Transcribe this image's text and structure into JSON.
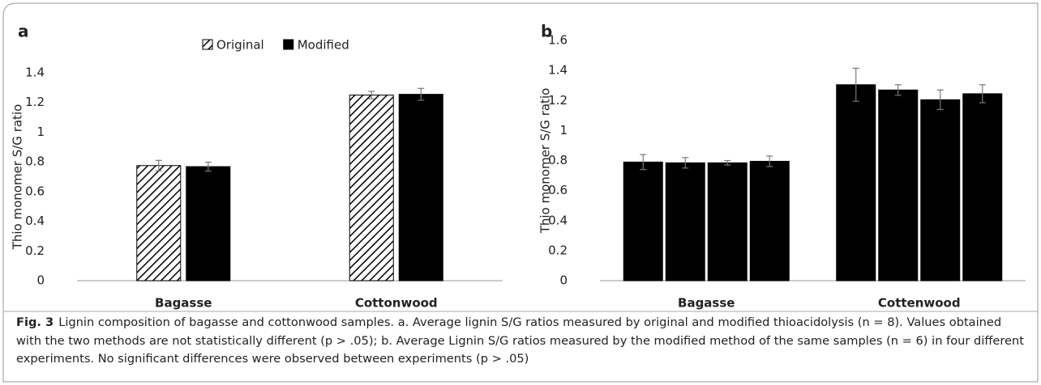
{
  "chart_data": [
    {
      "type": "bar",
      "panel": "a",
      "ylabel": "Thio monomer S/G ratio",
      "categories": [
        "Bagasse",
        "Cottonwood"
      ],
      "series": [
        {
          "name": "Original",
          "color": "#000000",
          "hatch": true,
          "values": [
            0.775,
            1.25
          ],
          "errors": [
            0.035,
            0.025
          ]
        },
        {
          "name": "Modified",
          "color": "#000000",
          "hatch": false,
          "values": [
            0.768,
            1.255
          ],
          "errors": [
            0.03,
            0.04
          ]
        }
      ],
      "ylim": [
        0,
        1.4
      ],
      "yticks": [
        0,
        0.2,
        0.4,
        0.6,
        0.8,
        1,
        1.2,
        1.4
      ],
      "grid": false,
      "legend": "top"
    },
    {
      "type": "bar",
      "panel": "b",
      "ylabel": "Thio monomer S/G ratio",
      "categories": [
        "Bagasse",
        "Cottenwood"
      ],
      "series": [
        {
          "color": "#000000",
          "values": [
            0.79,
            1.305
          ],
          "errors": [
            0.05,
            0.11
          ]
        },
        {
          "color": "#000000",
          "values": [
            0.785,
            1.27
          ],
          "errors": [
            0.035,
            0.035
          ]
        },
        {
          "color": "#000000",
          "values": [
            0.785,
            1.205
          ],
          "errors": [
            0.015,
            0.065
          ]
        },
        {
          "color": "#000000",
          "values": [
            0.795,
            1.245
          ],
          "errors": [
            0.035,
            0.06
          ]
        }
      ],
      "ylim": [
        0,
        1.6
      ],
      "yticks": [
        0,
        0.2,
        0.4,
        0.6,
        0.8,
        1,
        1.2,
        1.4,
        1.6
      ],
      "grid": false
    }
  ],
  "caption": {
    "label": "Fig. 3",
    "text": "Lignin composition of bagasse and cottonwood samples. a. Average lignin S/G ratios measured by original and modified thioacidolysis (n = 8). Values obtained with the two methods are not statistically different (p > .05); b. Average Lignin S/G ratios measured by the modified method of the same samples (n = 6) in four different experiments. No significant differences were observed between experiments (p > .05)"
  }
}
